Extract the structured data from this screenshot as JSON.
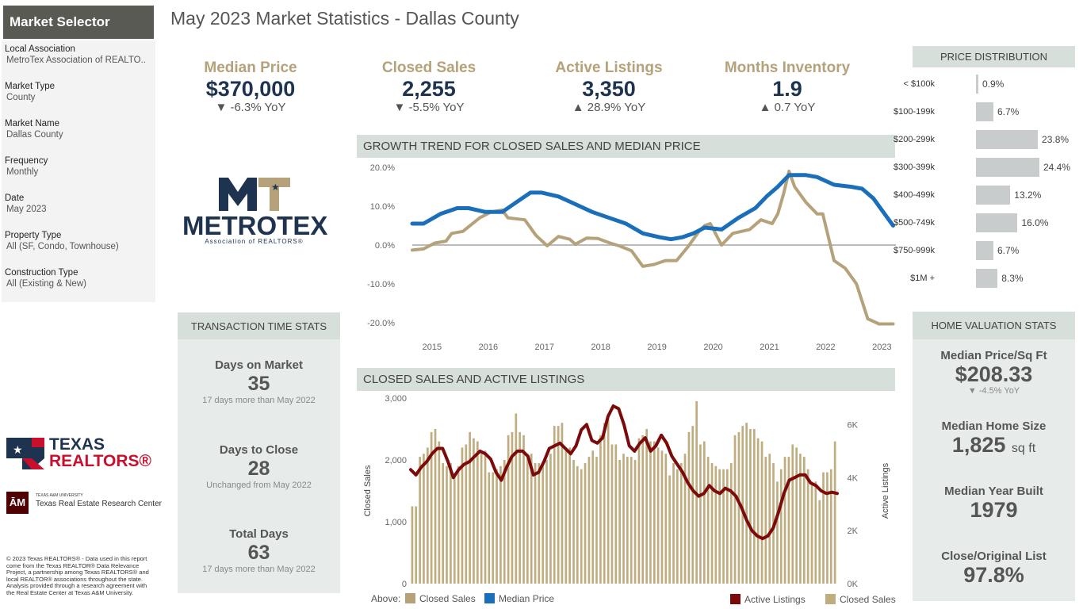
{
  "sidebar": {
    "title": "Market Selector",
    "filters": [
      {
        "label": "Local Association",
        "value": "MetroTex Association of REALTO.."
      },
      {
        "label": "Market Type",
        "value": "County"
      },
      {
        "label": "Market Name",
        "value": "Dallas County"
      },
      {
        "label": "Frequency",
        "value": "Monthly"
      },
      {
        "label": "Date",
        "value": "May 2023"
      },
      {
        "label": "Property Type",
        "value": "All (SF, Condo, Townhouse)"
      },
      {
        "label": "Construction Type",
        "value": "All (Existing & New)"
      }
    ]
  },
  "page_title": "May 2023 Market Statistics - Dallas County",
  "logos": {
    "metrotex": {
      "top": "MT",
      "name": "METROTEX",
      "sub": "Association of REALTORS®"
    },
    "texas_realtors": {
      "line1": "TEXAS",
      "line2": "REALTORS®"
    },
    "tamu": {
      "mark": "ĀM",
      "small": "TEXAS A&M UNIVERSITY",
      "name": "Texas Real Estate Research Center"
    }
  },
  "kpis": [
    {
      "label": "Median Price",
      "value": "$370,000",
      "change": "▼ -6.3% YoY"
    },
    {
      "label": "Closed Sales",
      "value": "2,255",
      "change": "▼ -5.5% YoY"
    },
    {
      "label": "Active Listings",
      "value": "3,350",
      "change": "▲ 28.9% YoY"
    },
    {
      "label": "Months Inventory",
      "value": "1.9",
      "change": "▲ 0.7 YoY"
    }
  ],
  "price_distribution": {
    "title": "PRICE DISTRIBUTION",
    "rows": [
      {
        "label": "< $100k",
        "value": "0.9%",
        "pct": 0.9
      },
      {
        "label": "$100-199k",
        "value": "6.7%",
        "pct": 6.7
      },
      {
        "label": "$200-299k",
        "value": "23.8%",
        "pct": 23.8
      },
      {
        "label": "$300-399k",
        "value": "24.4%",
        "pct": 24.4
      },
      {
        "label": "$400-499k",
        "value": "13.2%",
        "pct": 13.2
      },
      {
        "label": "$500-749k",
        "value": "16.0%",
        "pct": 16.0
      },
      {
        "label": "$750-999k",
        "value": "6.7%",
        "pct": 6.7
      },
      {
        "label": "$1M +",
        "value": "8.3%",
        "pct": 8.3
      }
    ]
  },
  "transaction": {
    "title": "TRANSACTION TIME STATS",
    "stats": [
      {
        "label": "Days on Market",
        "value": "35",
        "note": "17 days more than May 2022"
      },
      {
        "label": "Days to Close",
        "value": "28",
        "note": "Unchanged from May 2022"
      },
      {
        "label": "Total Days",
        "value": "63",
        "note": "17 days more than May 2022"
      }
    ]
  },
  "valuation": {
    "title": "HOME VALUATION STATS",
    "stats": [
      {
        "label": "Median Price/Sq Ft",
        "value": "$208.33",
        "unit": "",
        "note": "▼ -4.5% YoY"
      },
      {
        "label": "Median Home Size",
        "value": "1,825",
        "unit": "sq ft",
        "note": ""
      },
      {
        "label": "Median Year Built",
        "value": "1979",
        "unit": "",
        "note": ""
      },
      {
        "label": "Close/Original List",
        "value": "97.8%",
        "unit": "",
        "note": ""
      }
    ]
  },
  "copyright": "© 2023 Texas REALTORS® - Data used in this report come from the Texas REALTOR® Data Relevance Project, a partnership among Texas REALTORS® and local REALTOR® associations throughout the state. Analysis provided through a research agreement with the Real Estate Center at Texas A&M University.",
  "colors": {
    "gold": "#b5a27a",
    "navy": "#1d3350",
    "blue": "#1b6fba",
    "maroon": "#7d0a0a",
    "bar": "#bfad7f"
  },
  "chart_data": [
    {
      "type": "line",
      "title": "GROWTH TREND FOR CLOSED SALES AND MEDIAN PRICE",
      "x_ticks": [
        "2015",
        "2016",
        "2017",
        "2018",
        "2019",
        "2020",
        "2021",
        "2022",
        "2023"
      ],
      "y_ticks": [
        "20.0%",
        "10.0%",
        "0.0%",
        "-10.0%",
        "-20.0%"
      ],
      "ylim": [
        -20,
        20
      ],
      "x_range": [
        2014.8,
        2023.4
      ],
      "legend_prefix": "Above:",
      "series": [
        {
          "name": "Closed Sales",
          "color": "#b5a27a",
          "points": [
            [
              2014.8,
              -1.3
            ],
            [
              2015.0,
              -1.0
            ],
            [
              2015.2,
              0.5
            ],
            [
              2015.4,
              1.0
            ],
            [
              2015.5,
              3.0
            ],
            [
              2015.7,
              3.5
            ],
            [
              2016.0,
              7.0
            ],
            [
              2016.2,
              8.5
            ],
            [
              2016.4,
              9.0
            ],
            [
              2016.5,
              7.0
            ],
            [
              2016.8,
              6.5
            ],
            [
              2017.0,
              2.5
            ],
            [
              2017.2,
              -0.2
            ],
            [
              2017.4,
              2.2
            ],
            [
              2017.6,
              1.5
            ],
            [
              2017.7,
              0.2
            ],
            [
              2017.9,
              1.8
            ],
            [
              2018.1,
              1.7
            ],
            [
              2018.3,
              0.6
            ],
            [
              2018.5,
              -0.3
            ],
            [
              2018.7,
              -1.5
            ],
            [
              2018.9,
              -5.5
            ],
            [
              2019.1,
              -5.0
            ],
            [
              2019.3,
              -4.0
            ],
            [
              2019.5,
              -4.0
            ],
            [
              2019.7,
              -0.5
            ],
            [
              2019.9,
              3.5
            ],
            [
              2020.0,
              5.0
            ],
            [
              2020.1,
              5.5
            ],
            [
              2020.3,
              0.0
            ],
            [
              2020.5,
              3.0
            ],
            [
              2020.8,
              4.0
            ],
            [
              2021.0,
              6.5
            ],
            [
              2021.2,
              5.5
            ],
            [
              2021.3,
              8.0
            ],
            [
              2021.4,
              13.0
            ],
            [
              2021.5,
              19.0
            ],
            [
              2021.6,
              15.0
            ],
            [
              2021.8,
              11.0
            ],
            [
              2022.0,
              8.0
            ],
            [
              2022.1,
              8.0
            ],
            [
              2022.3,
              -4.0
            ],
            [
              2022.5,
              -6.0
            ],
            [
              2022.7,
              -10.0
            ],
            [
              2022.9,
              -19.0
            ],
            [
              2023.1,
              -20.3
            ],
            [
              2023.35,
              -20.3
            ]
          ]
        },
        {
          "name": "Median Price",
          "color": "#1b6fba",
          "points": [
            [
              2014.8,
              5.5
            ],
            [
              2015.0,
              5.5
            ],
            [
              2015.3,
              8.0
            ],
            [
              2015.6,
              9.5
            ],
            [
              2015.8,
              9.5
            ],
            [
              2016.1,
              8.5
            ],
            [
              2016.4,
              8.5
            ],
            [
              2016.6,
              10.5
            ],
            [
              2016.9,
              13.5
            ],
            [
              2017.1,
              13.5
            ],
            [
              2017.4,
              12.5
            ],
            [
              2017.7,
              10.5
            ],
            [
              2018.0,
              8.5
            ],
            [
              2018.3,
              7.0
            ],
            [
              2018.6,
              5.5
            ],
            [
              2018.9,
              3.0
            ],
            [
              2019.2,
              2.0
            ],
            [
              2019.4,
              1.5
            ],
            [
              2019.6,
              2.0
            ],
            [
              2019.8,
              3.0
            ],
            [
              2020.0,
              4.5
            ],
            [
              2020.3,
              4.0
            ],
            [
              2020.6,
              7.0
            ],
            [
              2020.9,
              9.5
            ],
            [
              2021.1,
              12.5
            ],
            [
              2021.3,
              15.0
            ],
            [
              2021.5,
              18.0
            ],
            [
              2021.8,
              18.0
            ],
            [
              2022.0,
              17.5
            ],
            [
              2022.3,
              15.5
            ],
            [
              2022.6,
              15.0
            ],
            [
              2022.8,
              14.5
            ],
            [
              2023.0,
              12.0
            ],
            [
              2023.2,
              8.0
            ],
            [
              2023.35,
              5.0
            ]
          ]
        }
      ]
    },
    {
      "type": "bar+line",
      "title": "CLOSED SALES AND ACTIVE LISTINGS",
      "ylabel": "Closed Sales",
      "y2label": "Active Listings",
      "y_ticks": [
        "3,000",
        "2,000",
        "1,000",
        "0"
      ],
      "y2_ticks": [
        "6K",
        "4K",
        "2K",
        "0K"
      ],
      "ylim": [
        0,
        3000
      ],
      "y2lim": [
        0,
        7000
      ],
      "bars": {
        "name": "Closed Sales",
        "color": "#bfad7f",
        "values": [
          1250,
          1250,
          2050,
          2100,
          2200,
          2450,
          2500,
          2300,
          1950,
          1900,
          1950,
          1750,
          1900,
          2200,
          2250,
          2450,
          2350,
          2300,
          2100,
          2150,
          1800,
          1800,
          1850,
          1900,
          2000,
          2400,
          2450,
          2750,
          2450,
          2400,
          2100,
          2100,
          1950,
          1950,
          1950,
          2000,
          2100,
          2550,
          2550,
          2600,
          2200,
          2200,
          2000,
          1900,
          1850,
          1950,
          2050,
          2150,
          2050,
          2400,
          2600,
          2750,
          2250,
          2250,
          2000,
          2100,
          2050,
          2050,
          2000,
          2350,
          2400,
          2500,
          2300,
          2300,
          2200,
          2150,
          2100,
          1750,
          1950,
          1850,
          1950,
          2100,
          2450,
          2550,
          2950,
          2250,
          2300,
          2050,
          1950,
          1900,
          1850,
          1850,
          1850,
          1950,
          2400,
          2450,
          2550,
          2600,
          2500,
          2500,
          2350,
          2300,
          2050,
          2100,
          1950,
          1650,
          1850,
          2050,
          2050,
          2250,
          2200,
          2100,
          2050,
          1850,
          1650,
          1650,
          1350,
          1800,
          1800,
          1850,
          2300
        ]
      },
      "line": {
        "name": "Active Listings",
        "color": "#7d0a0a",
        "points": [
          [
            0,
            4300
          ],
          [
            2,
            4100
          ],
          [
            4,
            4400
          ],
          [
            6,
            4600
          ],
          [
            8,
            4900
          ],
          [
            10,
            5100
          ],
          [
            12,
            5100
          ],
          [
            14,
            4600
          ],
          [
            16,
            4000
          ],
          [
            18,
            4300
          ],
          [
            20,
            4500
          ],
          [
            22,
            4600
          ],
          [
            24,
            4800
          ],
          [
            26,
            5000
          ],
          [
            28,
            4900
          ],
          [
            30,
            4700
          ],
          [
            32,
            4200
          ],
          [
            34,
            3900
          ],
          [
            36,
            4400
          ],
          [
            38,
            4800
          ],
          [
            40,
            5000
          ],
          [
            42,
            5000
          ],
          [
            44,
            4800
          ],
          [
            46,
            4100
          ],
          [
            48,
            4200
          ],
          [
            50,
            4600
          ],
          [
            52,
            5100
          ],
          [
            54,
            5200
          ],
          [
            56,
            5300
          ],
          [
            58,
            5100
          ],
          [
            60,
            4900
          ],
          [
            62,
            5200
          ],
          [
            64,
            5800
          ],
          [
            66,
            6000
          ],
          [
            68,
            5400
          ],
          [
            70,
            5300
          ],
          [
            72,
            5500
          ],
          [
            74,
            6300
          ],
          [
            76,
            6700
          ],
          [
            78,
            6600
          ],
          [
            80,
            6000
          ],
          [
            82,
            5200
          ],
          [
            84,
            5000
          ],
          [
            86,
            5300
          ],
          [
            88,
            5500
          ],
          [
            90,
            5000
          ],
          [
            92,
            5200
          ],
          [
            94,
            5600
          ],
          [
            96,
            5300
          ],
          [
            98,
            4800
          ],
          [
            100,
            4500
          ],
          [
            102,
            4200
          ],
          [
            104,
            3800
          ],
          [
            106,
            3500
          ],
          [
            108,
            3300
          ],
          [
            110,
            3400
          ],
          [
            112,
            3700
          ],
          [
            114,
            3500
          ],
          [
            116,
            3400
          ],
          [
            118,
            3600
          ],
          [
            120,
            3500
          ],
          [
            122,
            3300
          ],
          [
            124,
            2900
          ],
          [
            126,
            2400
          ],
          [
            128,
            2000
          ],
          [
            130,
            1800
          ],
          [
            132,
            1700
          ],
          [
            134,
            1800
          ],
          [
            136,
            2100
          ],
          [
            138,
            2700
          ],
          [
            140,
            3400
          ],
          [
            142,
            3900
          ],
          [
            144,
            4000
          ],
          [
            146,
            4100
          ],
          [
            148,
            4100
          ],
          [
            150,
            3800
          ],
          [
            152,
            3700
          ],
          [
            154,
            3500
          ],
          [
            156,
            3400
          ],
          [
            158,
            3450
          ],
          [
            160,
            3400
          ]
        ]
      },
      "legend": [
        {
          "label": "Active Listings",
          "color": "#7d0a0a"
        },
        {
          "label": "Closed Sales",
          "color": "#bfad7f"
        }
      ]
    }
  ]
}
